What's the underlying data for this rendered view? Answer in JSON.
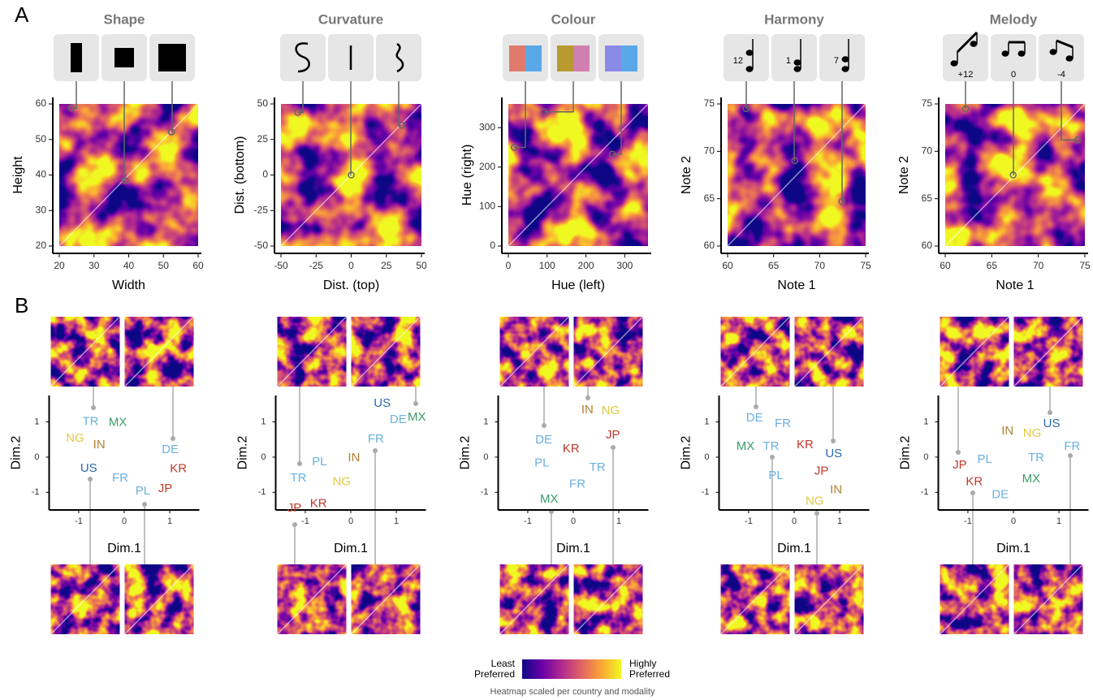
{
  "panel_labels": [
    "A",
    "B"
  ],
  "colorbar": {
    "low": "Least Preferred",
    "high": "Highly Preferred",
    "caption": "Heatmap scaled per country and modality",
    "colors": [
      "#0d0887",
      "#6a00a8",
      "#b12a90",
      "#e16462",
      "#fca636",
      "#f0f921"
    ]
  },
  "chart_data": [
    {
      "type": "heatmap",
      "title": "Shape",
      "x_label": "Width",
      "y_label": "Height",
      "xlim": [
        20,
        60
      ],
      "ylim": [
        20,
        60
      ],
      "xticks": [
        20,
        30,
        40,
        50,
        60
      ],
      "yticks": [
        20,
        30,
        40,
        50,
        60
      ],
      "markers": {
        "x": [
          23.5,
          39,
          52.3
        ],
        "y": [
          58.8,
          38.4,
          52.1
        ]
      }
    },
    {
      "type": "heatmap",
      "title": "Curvature",
      "x_label": "Dist. (top)",
      "y_label": "Dist. (bottom)",
      "xlim": [
        -50,
        50
      ],
      "ylim": [
        -50,
        50
      ],
      "xticks": [
        -50,
        -25,
        0,
        25,
        50
      ],
      "yticks": [
        -50,
        -25,
        0,
        25,
        50
      ],
      "markers": {
        "x": [
          -38,
          0,
          36
        ],
        "y": [
          44,
          0,
          35
        ]
      }
    },
    {
      "type": "heatmap",
      "title": "Colour",
      "x_label": "Hue (left)",
      "y_label": "Hue (right)",
      "xlim": [
        0,
        360
      ],
      "ylim": [
        0,
        360
      ],
      "xticks": [
        0,
        100,
        200,
        300
      ],
      "yticks": [
        0,
        100,
        200,
        300
      ],
      "markers": {
        "x": [
          15,
          92,
          268
        ],
        "y": [
          250,
          340,
          233
        ]
      }
    },
    {
      "type": "heatmap",
      "title": "Harmony",
      "x_label": "Note 1",
      "y_label": "Note 2",
      "xlim": [
        60,
        75
      ],
      "ylim": [
        60,
        75
      ],
      "xticks": [
        60,
        65,
        70,
        75
      ],
      "yticks": [
        60,
        65,
        70,
        75
      ],
      "markers": {
        "x": [
          62,
          67.3,
          72.4
        ],
        "y": [
          74.5,
          69,
          64.7
        ]
      },
      "icon_labels": [
        "12",
        "1",
        "7"
      ]
    },
    {
      "type": "heatmap",
      "title": "Melody",
      "x_label": "Note 1",
      "y_label": "Note 2",
      "xlim": [
        60,
        75
      ],
      "ylim": [
        60,
        75
      ],
      "xticks": [
        60,
        65,
        70,
        75
      ],
      "yticks": [
        60,
        65,
        70,
        75
      ],
      "markers": {
        "x": [
          62.2,
          67.3,
          74.2
        ],
        "y": [
          74.5,
          67.5,
          71.2
        ]
      },
      "icon_labels": [
        "+12",
        "0",
        "-4"
      ]
    },
    {
      "type": "scatter",
      "x_label": "Dim.1",
      "y_label": "Dim.2",
      "xlim": [
        -1.65,
        1.65
      ],
      "ylim": [
        -1.5,
        1.75
      ],
      "xticks": [
        -1,
        0,
        1
      ],
      "yticks": [
        -1,
        0,
        1
      ],
      "points": [
        {
          "label": "TR",
          "x": -0.74,
          "y": 1.0,
          "color": "#6ab0e0"
        },
        {
          "label": "MX",
          "x": -0.14,
          "y": 0.98,
          "color": "#3a9a6a"
        },
        {
          "label": "NG",
          "x": -1.08,
          "y": 0.53,
          "color": "#e0c840"
        },
        {
          "label": "IN",
          "x": -0.55,
          "y": 0.34,
          "color": "#b08030"
        },
        {
          "label": "US",
          "x": -0.78,
          "y": -0.32,
          "color": "#2a6aaa"
        },
        {
          "label": "FR",
          "x": -0.09,
          "y": -0.6,
          "color": "#6ab0e0"
        },
        {
          "label": "PL",
          "x": 0.41,
          "y": -0.97,
          "color": "#6ab0e0"
        },
        {
          "label": "DE",
          "x": 1.01,
          "y": 0.2,
          "color": "#6ab0e0"
        },
        {
          "label": "KR",
          "x": 1.19,
          "y": -0.34,
          "color": "#c0392b"
        },
        {
          "label": "JP",
          "x": 0.9,
          "y": -0.9,
          "color": "#c0392b"
        }
      ]
    },
    {
      "type": "scatter",
      "x_label": "Dim.1",
      "y_label": "Dim.2",
      "xlim": [
        -1.65,
        1.65
      ],
      "ylim": [
        -1.5,
        1.75
      ],
      "xticks": [
        -1,
        0,
        1
      ],
      "yticks": [
        -1,
        0,
        1
      ],
      "points": [
        {
          "label": "US",
          "x": 0.69,
          "y": 1.52,
          "color": "#2a6aaa"
        },
        {
          "label": "DE",
          "x": 1.04,
          "y": 1.06,
          "color": "#6ab0e0"
        },
        {
          "label": "MX",
          "x": 1.45,
          "y": 1.13,
          "color": "#3a9a6a"
        },
        {
          "label": "FR",
          "x": 0.55,
          "y": 0.51,
          "color": "#6ab0e0"
        },
        {
          "label": "PL",
          "x": -0.69,
          "y": -0.14,
          "color": "#6ab0e0"
        },
        {
          "label": "IN",
          "x": 0.07,
          "y": -0.02,
          "color": "#b08030"
        },
        {
          "label": "TR",
          "x": -1.15,
          "y": -0.6,
          "color": "#6ab0e0"
        },
        {
          "label": "NG",
          "x": -0.2,
          "y": -0.71,
          "color": "#e0c840"
        },
        {
          "label": "KR",
          "x": -0.71,
          "y": -1.33,
          "color": "#c0392b"
        },
        {
          "label": "JP",
          "x": -1.24,
          "y": -1.45,
          "color": "#c0392b"
        }
      ]
    },
    {
      "type": "scatter",
      "x_label": "Dim.1",
      "y_label": "Dim.2",
      "xlim": [
        -1.65,
        1.65
      ],
      "ylim": [
        -1.5,
        1.75
      ],
      "xticks": [
        -1,
        0,
        1
      ],
      "yticks": [
        -1,
        0,
        1
      ],
      "points": [
        {
          "label": "IN",
          "x": 0.31,
          "y": 1.33,
          "color": "#b08030"
        },
        {
          "label": "NG",
          "x": 0.82,
          "y": 1.31,
          "color": "#e0c840"
        },
        {
          "label": "JP",
          "x": 0.87,
          "y": 0.62,
          "color": "#c0392b"
        },
        {
          "label": "DE",
          "x": -0.65,
          "y": 0.48,
          "color": "#6ab0e0"
        },
        {
          "label": "KR",
          "x": -0.05,
          "y": 0.23,
          "color": "#c0392b"
        },
        {
          "label": "PL",
          "x": -0.69,
          "y": -0.18,
          "color": "#6ab0e0"
        },
        {
          "label": "TR",
          "x": 0.53,
          "y": -0.3,
          "color": "#6ab0e0"
        },
        {
          "label": "FR",
          "x": 0.09,
          "y": -0.78,
          "color": "#6ab0e0"
        },
        {
          "label": "MX",
          "x": -0.53,
          "y": -1.2,
          "color": "#3a9a6a"
        }
      ]
    },
    {
      "type": "scatter",
      "x_label": "Dim.1",
      "y_label": "Dim.2",
      "xlim": [
        -1.65,
        1.65
      ],
      "ylim": [
        -1.5,
        1.75
      ],
      "xticks": [
        -1,
        0,
        1
      ],
      "yticks": [
        -1,
        0,
        1
      ],
      "points": [
        {
          "label": "DE",
          "x": -0.87,
          "y": 1.1,
          "color": "#6ab0e0"
        },
        {
          "label": "FR",
          "x": -0.25,
          "y": 0.94,
          "color": "#6ab0e0"
        },
        {
          "label": "MX",
          "x": -1.07,
          "y": 0.3,
          "color": "#3a9a6a"
        },
        {
          "label": "TR",
          "x": -0.51,
          "y": 0.3,
          "color": "#6ab0e0"
        },
        {
          "label": "KR",
          "x": 0.24,
          "y": 0.34,
          "color": "#c0392b"
        },
        {
          "label": "US",
          "x": 0.87,
          "y": 0.09,
          "color": "#2a6aaa"
        },
        {
          "label": "PL",
          "x": -0.4,
          "y": -0.53,
          "color": "#6ab0e0"
        },
        {
          "label": "JP",
          "x": 0.6,
          "y": -0.41,
          "color": "#c0392b"
        },
        {
          "label": "IN",
          "x": 0.92,
          "y": -0.94,
          "color": "#b08030"
        },
        {
          "label": "NG",
          "x": 0.45,
          "y": -1.26,
          "color": "#e0c840"
        }
      ]
    },
    {
      "type": "scatter",
      "x_label": "Dim.1",
      "y_label": "Dim.2",
      "xlim": [
        -1.65,
        1.65
      ],
      "ylim": [
        -1.5,
        1.75
      ],
      "xticks": [
        -1,
        0,
        1
      ],
      "yticks": [
        -1,
        0,
        1
      ],
      "points": [
        {
          "label": "US",
          "x": 0.84,
          "y": 0.94,
          "color": "#2a6aaa"
        },
        {
          "label": "NG",
          "x": 0.41,
          "y": 0.67,
          "color": "#e0c840"
        },
        {
          "label": "IN",
          "x": -0.13,
          "y": 0.74,
          "color": "#b08030"
        },
        {
          "label": "FR",
          "x": 1.29,
          "y": 0.3,
          "color": "#6ab0e0"
        },
        {
          "label": "TR",
          "x": 0.5,
          "y": -0.02,
          "color": "#6ab0e0"
        },
        {
          "label": "PL",
          "x": -0.63,
          "y": -0.07,
          "color": "#6ab0e0"
        },
        {
          "label": "JP",
          "x": -1.18,
          "y": -0.23,
          "color": "#c0392b"
        },
        {
          "label": "MX",
          "x": 0.39,
          "y": -0.62,
          "color": "#3a9a6a"
        },
        {
          "label": "KR",
          "x": -0.86,
          "y": -0.71,
          "color": "#c0392b"
        },
        {
          "label": "DE",
          "x": -0.29,
          "y": -1.08,
          "color": "#6ab0e0"
        }
      ]
    }
  ]
}
